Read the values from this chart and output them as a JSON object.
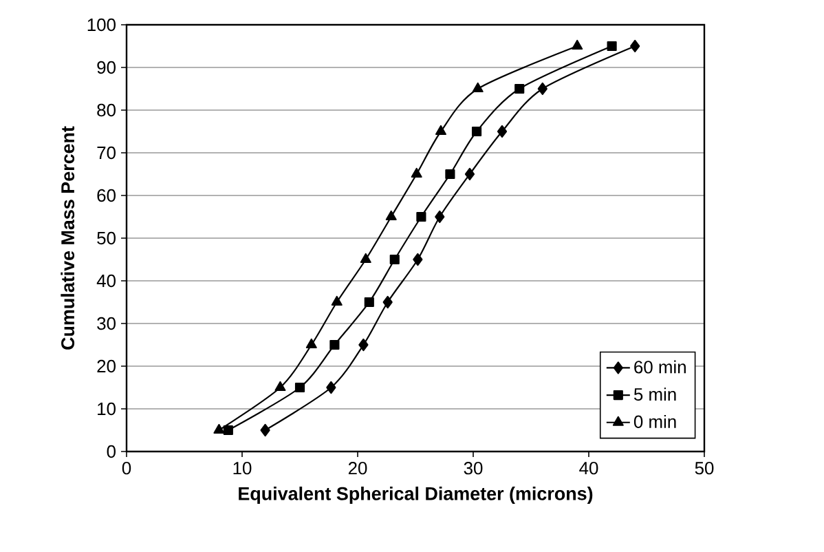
{
  "chart_data": {
    "type": "line",
    "xlabel": "Equivalent Spherical Diameter (microns)",
    "ylabel": "Cumulative Mass Percent",
    "xlim": [
      0,
      50
    ],
    "xticks": [
      0,
      10,
      20,
      30,
      40,
      50
    ],
    "ylim": [
      0,
      100
    ],
    "yticks": [
      0,
      10,
      20,
      30,
      40,
      50,
      60,
      70,
      80,
      90,
      100
    ],
    "grid": "y",
    "legend": "bottom right",
    "line_style": "solid",
    "series": [
      {
        "name": "60 min",
        "color": "#000000",
        "marker": "diamond",
        "x": [
          12.0,
          17.7,
          20.5,
          22.6,
          25.2,
          27.1,
          29.7,
          32.5,
          36.0,
          44.0
        ],
        "values": [
          5,
          15,
          25,
          35,
          45,
          55,
          65,
          75,
          85,
          95
        ]
      },
      {
        "name": "5 min",
        "color": "#000000",
        "marker": "square",
        "x": [
          8.8,
          15.0,
          18.0,
          21.0,
          23.2,
          25.5,
          28.0,
          30.3,
          34.0,
          42.0
        ],
        "values": [
          5,
          15,
          25,
          35,
          45,
          55,
          65,
          75,
          85,
          95
        ]
      },
      {
        "name": "0 min",
        "color": "#000000",
        "marker": "triangle",
        "x": [
          8.0,
          13.3,
          16.0,
          18.2,
          20.7,
          22.9,
          25.1,
          27.2,
          30.4,
          39.0
        ],
        "values": [
          5,
          15,
          25,
          35,
          45,
          55,
          65,
          75,
          85,
          95
        ]
      }
    ]
  }
}
